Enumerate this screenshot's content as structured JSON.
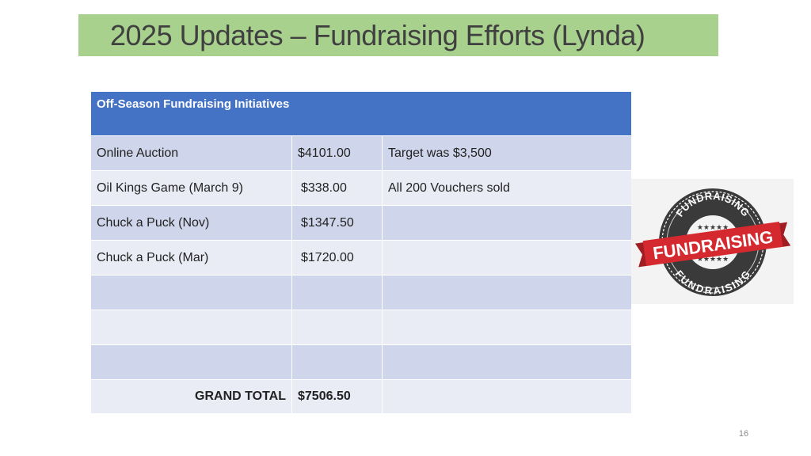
{
  "slide": {
    "title": "2025 Updates – Fundraising Efforts (Lynda)",
    "page_number": "16"
  },
  "table": {
    "header": "Off-Season Fundraising Initiatives",
    "rows": [
      {
        "name": "Online Auction",
        "amount": "$4101.00",
        "note": "Target was $3,500"
      },
      {
        "name": "Oil Kings Game (March 9)",
        "amount": "$338.00",
        "note": "All 200 Vouchers sold"
      },
      {
        "name": "Chuck a Puck (Nov)",
        "amount": "$1347.50",
        "note": ""
      },
      {
        "name": "Chuck a Puck (Mar)",
        "amount": "$1720.00",
        "note": ""
      },
      {
        "name": "",
        "amount": "",
        "note": ""
      },
      {
        "name": "",
        "amount": "",
        "note": ""
      },
      {
        "name": "",
        "amount": "",
        "note": ""
      }
    ],
    "total_label": "GRAND TOTAL",
    "total_value": "$7506.50"
  },
  "logo": {
    "icon": "fundraising-seal-icon",
    "top_arc_text": "FUNDRAISING",
    "banner_text": "FUNDRAISING",
    "bottom_arc_text": "FUNDRAISING",
    "ring_color": "#3a3a3a",
    "banner_color": "#d42a2f"
  }
}
